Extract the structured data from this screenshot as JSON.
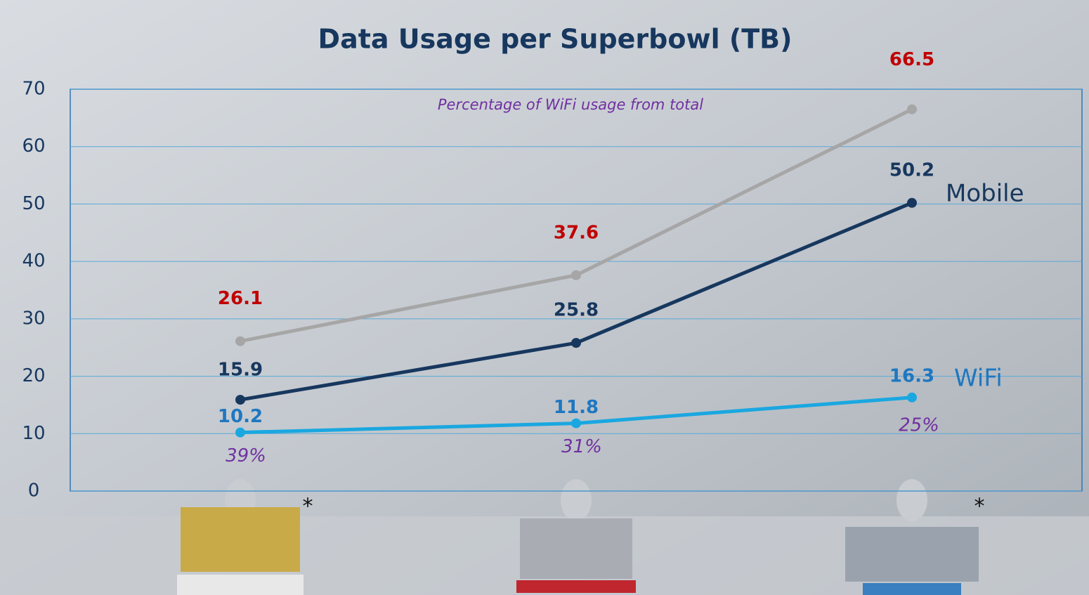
{
  "chart_data": {
    "type": "line",
    "title": "Data Usage per Superbowl (TB)",
    "categories": [
      null,
      null,
      null
    ],
    "series": [
      {
        "color": "#a6a6a6",
        "label_color": "#c00000",
        "values": [
          26.1,
          37.6,
          66.5
        ]
      },
      {
        "name": "Mobile",
        "color": "#17375e",
        "label_color": "#17375e",
        "values": [
          15.9,
          25.8,
          50.2
        ]
      },
      {
        "name": "WiFi",
        "color": "#1aa7e0",
        "label_color": "#1f77c0",
        "values": [
          10.2,
          11.8,
          16.3
        ]
      }
    ],
    "wifi_share": {
      "title": "Percentage of WiFi usage from total",
      "color": "#7030a0",
      "values": [
        39,
        31,
        25
      ],
      "value_labels": [
        "39%",
        "31%",
        "25%"
      ]
    },
    "category_marks": [
      "*",
      null,
      "*"
    ],
    "ylim": [
      0,
      70
    ],
    "yticks": [
      0,
      10,
      20,
      30,
      40,
      50,
      60,
      70
    ],
    "grid": true
  }
}
